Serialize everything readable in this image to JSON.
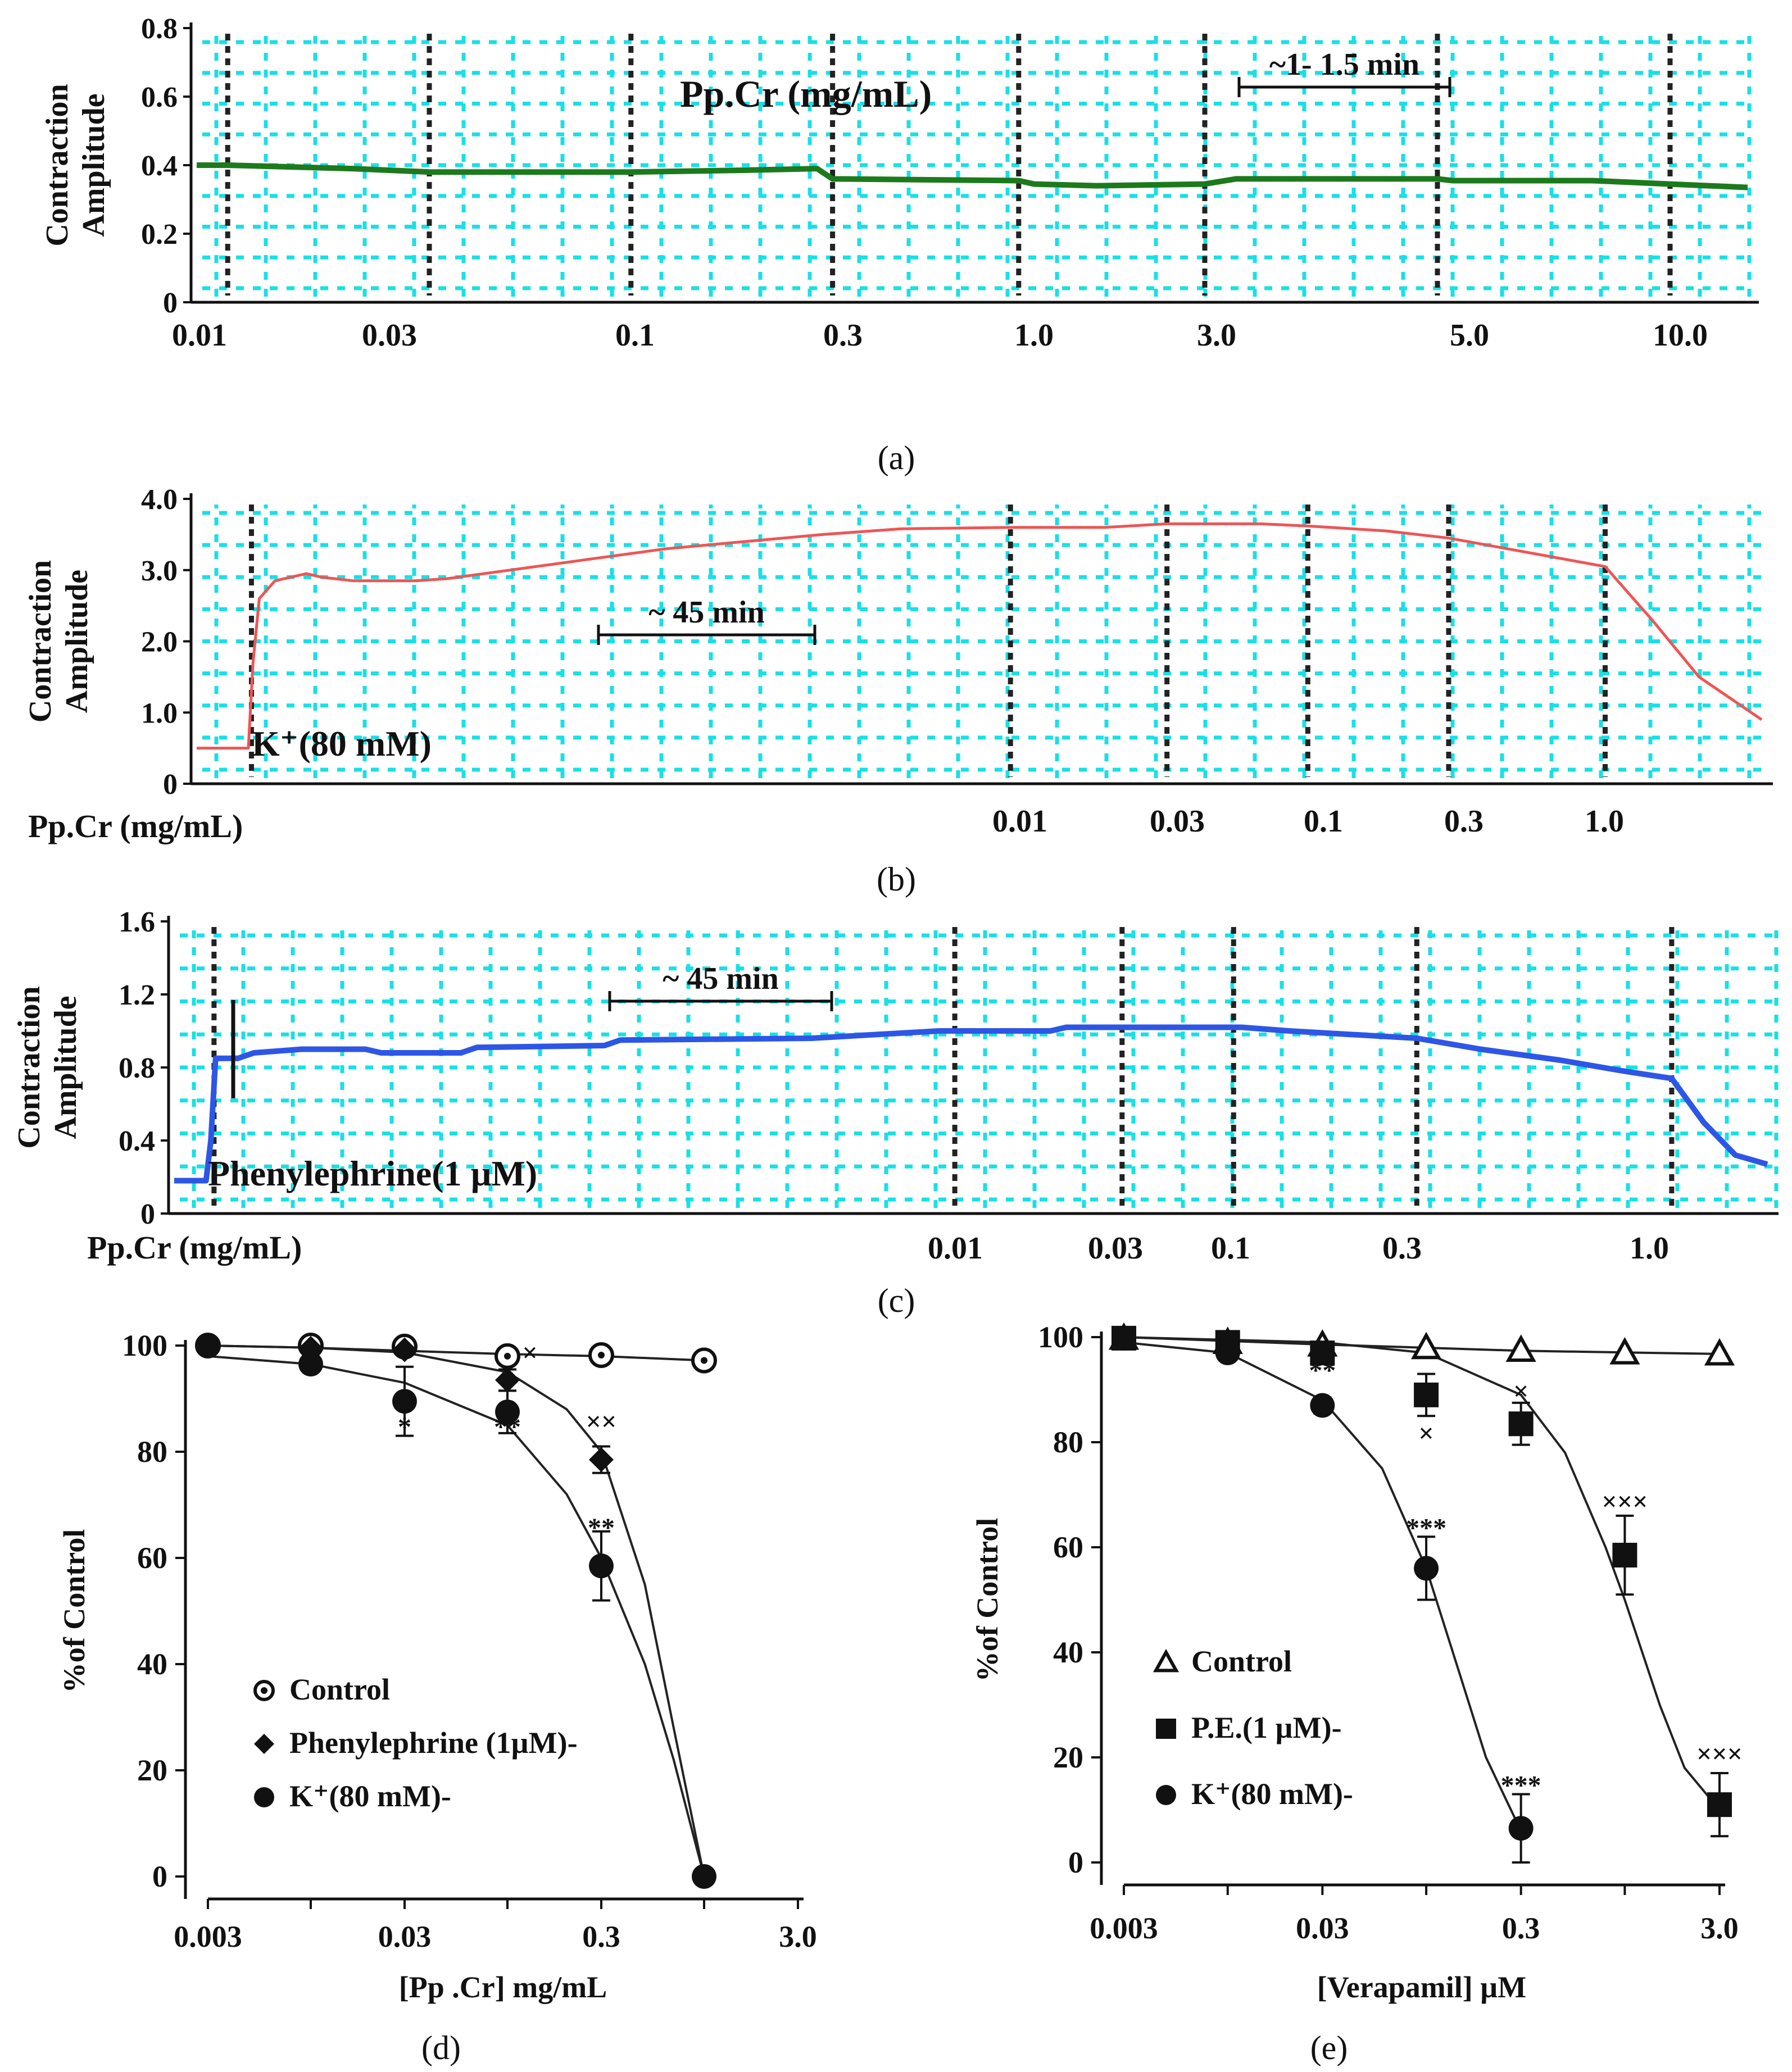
{
  "figure": {
    "colors": {
      "grid": "#18e0e6",
      "marker_line": "#222222",
      "trace_a": "#1c7a1c",
      "trace_b": "#ee5555",
      "trace_c": "#2e56e6",
      "axis": "#111111",
      "asterisk": "#2a7fd4",
      "cross": "#2a7fd4"
    }
  },
  "chart_data": [
    {
      "id": "a",
      "type": "line",
      "caption": "(a)",
      "ylabel_lines": [
        "Contraction",
        "Amplitude"
      ],
      "ylim": [
        0,
        0.8
      ],
      "yticks": [
        "0",
        "0.2",
        "0.4",
        "0.6",
        "0.8"
      ],
      "annotation": "Pp.Cr (mg/mL)",
      "time_bar_label": "~1- 1.5 min",
      "time_range": [
        0,
        100
      ],
      "doses": [
        "0.01",
        "0.03",
        "0.1",
        "0.3",
        "1.0",
        "3.0",
        "5.0",
        "10.0"
      ],
      "dose_times": [
        2,
        15,
        28,
        41,
        53,
        65,
        80,
        95
      ],
      "trace": [
        [
          0,
          0.4
        ],
        [
          2,
          0.4
        ],
        [
          10,
          0.39
        ],
        [
          15,
          0.38
        ],
        [
          28,
          0.38
        ],
        [
          35,
          0.385
        ],
        [
          40,
          0.39
        ],
        [
          41,
          0.36
        ],
        [
          53,
          0.355
        ],
        [
          54,
          0.345
        ],
        [
          58,
          0.34
        ],
        [
          65,
          0.345
        ],
        [
          67,
          0.36
        ],
        [
          75,
          0.36
        ],
        [
          80,
          0.36
        ],
        [
          81,
          0.355
        ],
        [
          90,
          0.355
        ],
        [
          95,
          0.345
        ],
        [
          100,
          0.335
        ]
      ]
    },
    {
      "id": "b",
      "type": "line",
      "caption": "(b)",
      "ylabel_lines": [
        "Contraction",
        "Amplitude"
      ],
      "ylim": [
        0,
        4.0
      ],
      "yticks": [
        "0",
        "1.0",
        "2.0",
        "3.0",
        "4.0"
      ],
      "xlabel": "Pp.Cr (mg/mL)",
      "agonist_label": "K⁺(80 mM)",
      "time_bar_label": "~ 45 min",
      "time_range": [
        0,
        100
      ],
      "doses": [
        "0.01",
        "0.03",
        "0.1",
        "0.3",
        "1.0"
      ],
      "dose_times": [
        52,
        62,
        71,
        80,
        90
      ],
      "agonist_time": 3.5,
      "trace": [
        [
          0,
          0.5
        ],
        [
          3.3,
          0.5
        ],
        [
          3.6,
          1.7
        ],
        [
          4,
          2.6
        ],
        [
          5,
          2.85
        ],
        [
          7,
          2.95
        ],
        [
          8,
          2.9
        ],
        [
          10,
          2.85
        ],
        [
          12,
          2.85
        ],
        [
          14,
          2.85
        ],
        [
          16,
          2.88
        ],
        [
          20,
          3.0
        ],
        [
          25,
          3.15
        ],
        [
          30,
          3.3
        ],
        [
          35,
          3.4
        ],
        [
          40,
          3.5
        ],
        [
          45,
          3.58
        ],
        [
          52,
          3.6
        ],
        [
          58,
          3.6
        ],
        [
          62,
          3.65
        ],
        [
          68,
          3.65
        ],
        [
          71,
          3.62
        ],
        [
          76,
          3.55
        ],
        [
          80,
          3.45
        ],
        [
          85,
          3.25
        ],
        [
          90,
          3.05
        ],
        [
          93,
          2.3
        ],
        [
          96,
          1.5
        ],
        [
          100,
          0.9
        ]
      ]
    },
    {
      "id": "c",
      "type": "line",
      "caption": "(c)",
      "ylabel_lines": [
        "Contraction",
        "Amplitude"
      ],
      "ylim": [
        0,
        1.6
      ],
      "yticks": [
        "0",
        "0.4",
        "0.8",
        "1.2",
        "1.6"
      ],
      "xlabel": "Pp.Cr (mg/mL)",
      "agonist_label": "Phenylephrine(1 µM)",
      "time_bar_label": "~ 45 min",
      "time_range": [
        0,
        100
      ],
      "doses": [
        "0.01",
        "0.03",
        "0.1",
        "0.3",
        "1.0"
      ],
      "dose_times": [
        49,
        59.5,
        66.5,
        78,
        94
      ],
      "agonist_time": 2.5,
      "trace": [
        [
          0,
          0.18
        ],
        [
          2,
          0.18
        ],
        [
          2.3,
          0.4
        ],
        [
          2.6,
          0.85
        ],
        [
          4,
          0.85
        ],
        [
          5,
          0.88
        ],
        [
          8,
          0.9
        ],
        [
          12,
          0.9
        ],
        [
          13,
          0.88
        ],
        [
          18,
          0.88
        ],
        [
          19,
          0.91
        ],
        [
          27,
          0.92
        ],
        [
          28,
          0.95
        ],
        [
          40,
          0.96
        ],
        [
          48,
          1.0
        ],
        [
          55,
          1.0
        ],
        [
          56,
          1.02
        ],
        [
          67,
          1.02
        ],
        [
          70,
          1.0
        ],
        [
          78,
          0.96
        ],
        [
          82,
          0.9
        ],
        [
          87,
          0.84
        ],
        [
          91,
          0.78
        ],
        [
          94,
          0.74
        ],
        [
          96,
          0.5
        ],
        [
          98,
          0.32
        ],
        [
          100,
          0.27
        ]
      ]
    },
    {
      "id": "d",
      "type": "scatter",
      "caption": "(d)",
      "xscale": "log",
      "xlabel": "[Pp .Cr] mg/mL",
      "ylabel": "%of Control",
      "xlim": [
        0.003,
        3.0
      ],
      "ylim": [
        0,
        100
      ],
      "xticks": [
        "0.003",
        "0.03",
        "0.3",
        "3.0"
      ],
      "yticks": [
        "0",
        "20",
        "40",
        "60",
        "80",
        "100"
      ],
      "series": [
        {
          "name": "Control",
          "marker": "circle-dot",
          "x": [
            0.003,
            0.01,
            0.03,
            0.1,
            0.3,
            1.0
          ],
          "y": [
            100,
            100,
            99.8,
            98,
            98.2,
            97.2
          ],
          "err": [
            0,
            0,
            0,
            0,
            0,
            0
          ],
          "fit": [
            [
              0.003,
              100
            ],
            [
              0.01,
              99.6
            ],
            [
              0.03,
              99
            ],
            [
              0.1,
              98.4
            ],
            [
              0.3,
              98
            ],
            [
              1.0,
              97.2
            ]
          ]
        },
        {
          "name": "Phenylephrine (1µM)-",
          "marker": "diamond",
          "x": [
            0.003,
            0.01,
            0.03,
            0.1,
            0.3,
            1.0
          ],
          "y": [
            100,
            99.5,
            99.2,
            93.5,
            78.5,
            0
          ],
          "err": [
            0,
            0,
            0,
            2,
            2.5,
            0
          ],
          "fit": [
            [
              0.003,
              100
            ],
            [
              0.01,
              99.6
            ],
            [
              0.03,
              98.7
            ],
            [
              0.1,
              95
            ],
            [
              0.2,
              88
            ],
            [
              0.3,
              80
            ],
            [
              0.5,
              55
            ],
            [
              0.7,
              28
            ],
            [
              1.0,
              0
            ]
          ]
        },
        {
          "name": "K⁺(80 mM)-",
          "marker": "circle",
          "x": [
            0.003,
            0.01,
            0.03,
            0.1,
            0.3,
            1.0
          ],
          "y": [
            100,
            96.5,
            89.5,
            87.5,
            58.5,
            0
          ],
          "err": [
            0,
            0,
            6.5,
            4,
            6.5,
            0
          ],
          "fit": [
            [
              0.003,
              98
            ],
            [
              0.01,
              96.5
            ],
            [
              0.03,
              93
            ],
            [
              0.1,
              85
            ],
            [
              0.2,
              72
            ],
            [
              0.3,
              60
            ],
            [
              0.5,
              40
            ],
            [
              0.7,
              22
            ],
            [
              1.0,
              0
            ]
          ]
        }
      ],
      "significance": [
        {
          "x": 0.03,
          "y": 83,
          "label": "*"
        },
        {
          "x": 0.1,
          "y": 83,
          "label": "**"
        },
        {
          "x": 0.1,
          "y": 97,
          "label": "×",
          "dx": 0.35
        },
        {
          "x": 0.3,
          "y": 84,
          "label": "××"
        },
        {
          "x": 0.3,
          "y": 64,
          "label": "**"
        }
      ]
    },
    {
      "id": "e",
      "type": "scatter",
      "caption": "(e)",
      "xscale": "log",
      "xlabel": "[Verapamil] µM",
      "ylabel": "%of Control",
      "xlim": [
        0.003,
        3.0
      ],
      "ylim": [
        0,
        100
      ],
      "xticks": [
        "0.003",
        "0.03",
        "0.3",
        "3.0"
      ],
      "yticks": [
        "0",
        "20",
        "40",
        "60",
        "80",
        "100"
      ],
      "series": [
        {
          "name": "Control",
          "marker": "triangle",
          "x": [
            0.003,
            0.01,
            0.03,
            0.1,
            0.3,
            1.0,
            3.0
          ],
          "y": [
            99.8,
            99,
            98.5,
            98,
            97.5,
            97,
            96.8
          ],
          "err": [
            0,
            0,
            0,
            0,
            0,
            0,
            0
          ],
          "fit": [
            [
              0.003,
              100
            ],
            [
              0.03,
              98.6
            ],
            [
              0.3,
              97.4
            ],
            [
              3.0,
              96.8
            ]
          ]
        },
        {
          "name": "P.E.(1 µM)-",
          "marker": "square",
          "x": [
            0.003,
            0.01,
            0.03,
            0.1,
            0.3,
            1.0,
            3.0
          ],
          "y": [
            99.8,
            99,
            97,
            89,
            83.5,
            58.5,
            11
          ],
          "err": [
            0,
            0,
            1.5,
            4,
            4,
            7.5,
            6
          ],
          "fit": [
            [
              0.003,
              100
            ],
            [
              0.03,
              99
            ],
            [
              0.1,
              97
            ],
            [
              0.3,
              89
            ],
            [
              0.5,
              78
            ],
            [
              0.8,
              60
            ],
            [
              1.0,
              50
            ],
            [
              1.5,
              30
            ],
            [
              2.0,
              18
            ],
            [
              3.0,
              10
            ]
          ]
        },
        {
          "name": "K⁺(80 mM)-",
          "marker": "circle",
          "x": [
            0.003,
            0.01,
            0.03,
            0.1,
            0.3
          ],
          "y": [
            99.8,
            97,
            87,
            56,
            6.5
          ],
          "err": [
            0,
            0,
            1.5,
            6,
            6.5
          ],
          "fit": [
            [
              0.003,
              99
            ],
            [
              0.01,
              97
            ],
            [
              0.03,
              88
            ],
            [
              0.06,
              75
            ],
            [
              0.1,
              56
            ],
            [
              0.15,
              35
            ],
            [
              0.2,
              20
            ],
            [
              0.3,
              6
            ]
          ]
        }
      ],
      "significance": [
        {
          "x": 0.03,
          "y": 92,
          "label": "**"
        },
        {
          "x": 0.1,
          "y": 80,
          "label": "×"
        },
        {
          "x": 0.1,
          "y": 62,
          "label": "***"
        },
        {
          "x": 0.3,
          "y": 88,
          "label": "×"
        },
        {
          "x": 1.0,
          "y": 67,
          "label": "×××"
        },
        {
          "x": 0.3,
          "y": 13,
          "label": "***"
        },
        {
          "x": 3.0,
          "y": 19,
          "label": "×××"
        }
      ]
    }
  ]
}
